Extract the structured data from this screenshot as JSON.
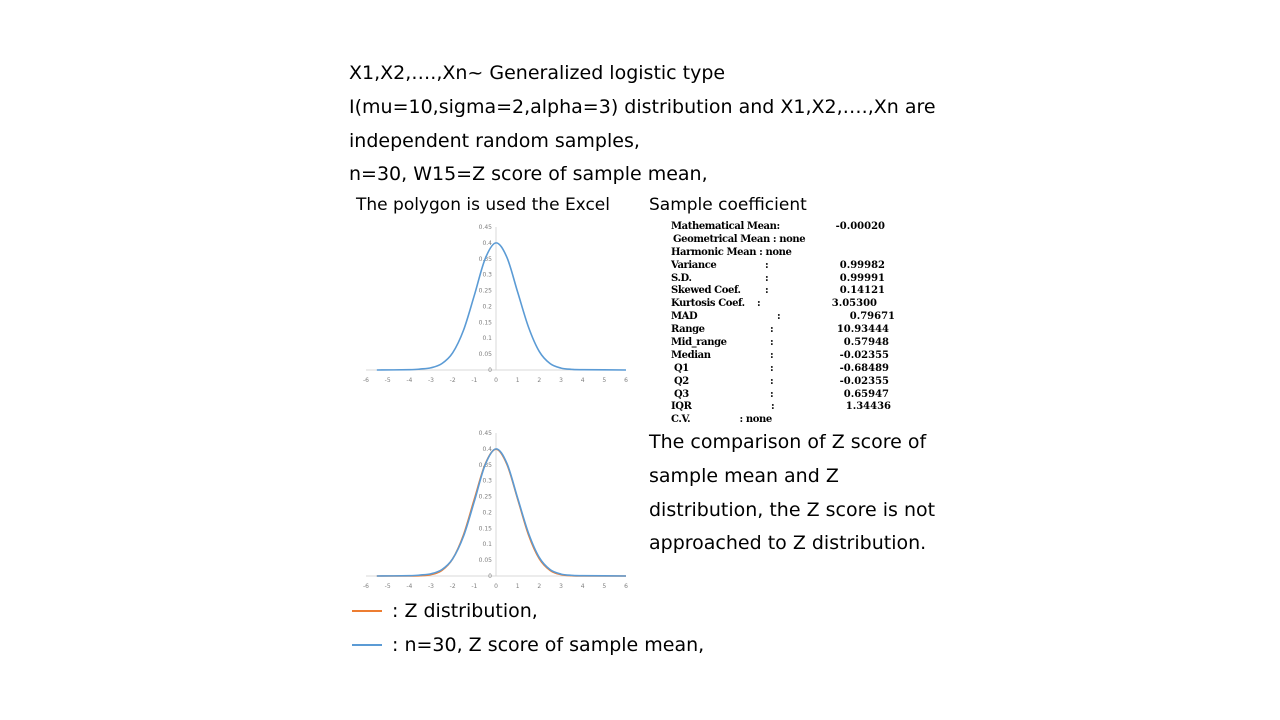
{
  "intro": {
    "lines": [
      "X1,X2,….,Xn~ Generalized logistic type",
      "I(mu=10,sigma=2,alpha=3) distribution and X1,X2,….,Xn are",
      "independent random samples,",
      "n=30, W15=Z score of sample mean,"
    ]
  },
  "captions": {
    "left": "The polygon is used the Excel",
    "right": "Sample coefficient"
  },
  "stats": [
    {
      "label": "Mathematical Mean:",
      "colon": "",
      "value": "-0.00020"
    },
    {
      "inline": "Geometrical Mean : none"
    },
    {
      "inline": "Harmonic Mean       : none"
    },
    {
      "label": "Variance",
      "colon": ":",
      "value": "0.99982"
    },
    {
      "label": "S.D.",
      "colon": ":",
      "value": "0.99991"
    },
    {
      "label": "Skewed Coef.",
      "colon": ":",
      "value": "0.14121"
    },
    {
      "label": "Kurtosis Coef.",
      "colon": ":",
      "value": "3.05300"
    },
    {
      "label": "MAD",
      "colon": ":",
      "value": "0.79671"
    },
    {
      "label": "Range",
      "colon": ":",
      "value": "10.93444"
    },
    {
      "label": "Mid_range",
      "colon": ":",
      "value": "0.57948"
    },
    {
      "label": "Median",
      "colon": ":",
      "value": "-0.02355"
    },
    {
      "label": "Q1",
      "colon": ":",
      "value": "-0.68489"
    },
    {
      "label": "Q2",
      "colon": ":",
      "value": "-0.02355"
    },
    {
      "label": "Q3",
      "colon": ":",
      "value": "0.65947"
    },
    {
      "label": "IQR",
      "colon": ":",
      "value": "1.34436"
    },
    {
      "inline": "C.V.                : none"
    }
  ],
  "comparison": "The comparison of Z score of sample mean and Z distribution, the Z score is not approached to Z distribution.",
  "legend": {
    "z_text": ": Z distribution,",
    "sample_text": ":   n=30, Z score of sample mean,",
    "z_color": "#ED7D31",
    "sample_color": "#5B9BD5"
  },
  "chart_data": [
    {
      "type": "line",
      "title": "",
      "xlim": [
        -6,
        6
      ],
      "ylim": [
        0,
        0.45
      ],
      "xticks": [
        -6,
        -5,
        -4,
        -3,
        -2,
        -1,
        0,
        1,
        2,
        3,
        4,
        5,
        6
      ],
      "yticks": [
        0,
        0.05,
        0.1,
        0.15,
        0.2,
        0.25,
        0.3,
        0.35,
        0.4,
        0.45
      ],
      "series": [
        {
          "color": "#5B9BD5",
          "x": [
            -5.5,
            -4,
            -3.5,
            -3,
            -2.5,
            -2,
            -1.5,
            -1,
            -0.5,
            0,
            0.5,
            1,
            1.5,
            2,
            2.5,
            3,
            3.5,
            4,
            6
          ],
          "y": [
            0,
            0.001,
            0.003,
            0.007,
            0.02,
            0.054,
            0.125,
            0.235,
            0.35,
            0.4,
            0.355,
            0.245,
            0.135,
            0.058,
            0.02,
            0.006,
            0.002,
            0.001,
            0
          ]
        }
      ]
    },
    {
      "type": "line",
      "title": "",
      "xlim": [
        -6,
        6
      ],
      "ylim": [
        0,
        0.45
      ],
      "xticks": [
        -6,
        -5,
        -4,
        -3,
        -2,
        -1,
        0,
        1,
        2,
        3,
        4,
        5,
        6
      ],
      "yticks": [
        0,
        0.05,
        0.1,
        0.15,
        0.2,
        0.25,
        0.3,
        0.35,
        0.4,
        0.45
      ],
      "series": [
        {
          "name": "Z distribution",
          "color": "#ED7D31",
          "x": [
            -5.5,
            -4,
            -3.5,
            -3,
            -2.5,
            -2,
            -1.5,
            -1,
            -0.5,
            0,
            0.5,
            1,
            1.5,
            2,
            2.5,
            3,
            3.5,
            4,
            6
          ],
          "y": [
            0,
            0.0001,
            0.0009,
            0.0044,
            0.0175,
            0.054,
            0.1295,
            0.242,
            0.352,
            0.399,
            0.352,
            0.242,
            0.1295,
            0.054,
            0.0175,
            0.0044,
            0.0009,
            0.0001,
            0
          ]
        },
        {
          "name": "n=30, Z score of sample mean",
          "color": "#5B9BD5",
          "x": [
            -5.5,
            -4,
            -3.5,
            -3,
            -2.5,
            -2,
            -1.5,
            -1,
            -0.5,
            0,
            0.5,
            1,
            1.5,
            2,
            2.5,
            3,
            3.5,
            4,
            6
          ],
          "y": [
            0,
            0.001,
            0.003,
            0.007,
            0.02,
            0.054,
            0.125,
            0.235,
            0.35,
            0.4,
            0.355,
            0.245,
            0.135,
            0.058,
            0.02,
            0.006,
            0.002,
            0.001,
            0
          ]
        }
      ]
    }
  ]
}
